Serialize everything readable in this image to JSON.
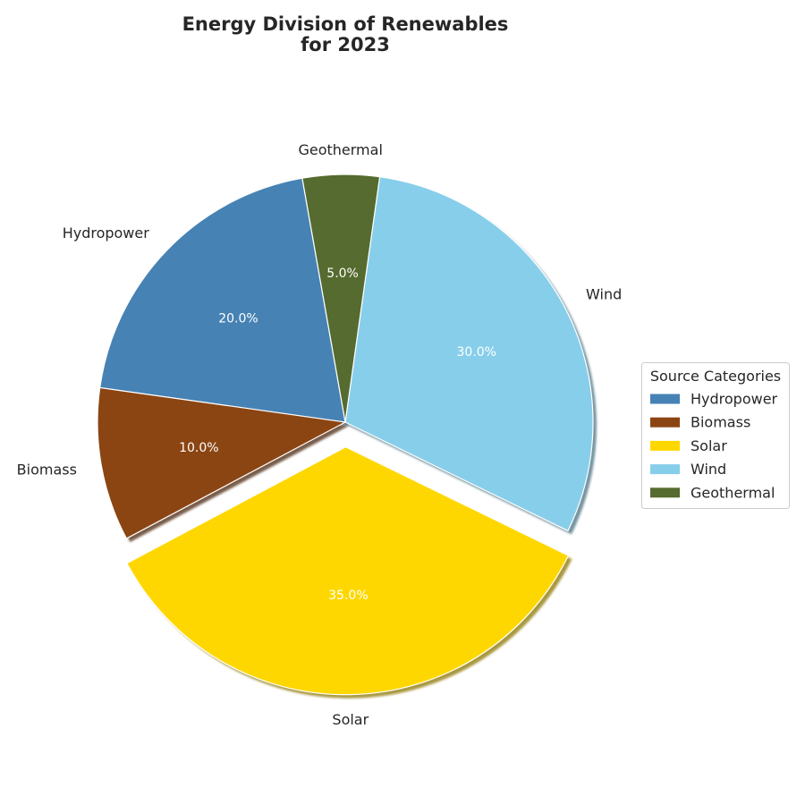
{
  "chart_data": {
    "type": "pie",
    "title_lines": [
      "Energy Division of Renewables",
      "for 2023"
    ],
    "categories": [
      "Hydropower",
      "Biomass",
      "Solar",
      "Wind",
      "Geothermal"
    ],
    "values": [
      20.0,
      10.0,
      35.0,
      30.0,
      5.0
    ],
    "percent_labels": [
      "20.0%",
      "10.0%",
      "35.0%",
      "30.0%",
      "5.0%"
    ],
    "colors": [
      "#4682B4",
      "#8B4513",
      "#FFD700",
      "#87CEEB",
      "#556B2F"
    ],
    "exploded": [
      "Solar"
    ],
    "shadow": true,
    "legend": {
      "title": "Source Categories",
      "placement": "center-right",
      "entries": [
        "Hydropower",
        "Biomass",
        "Solar",
        "Wind",
        "Geothermal"
      ]
    }
  }
}
